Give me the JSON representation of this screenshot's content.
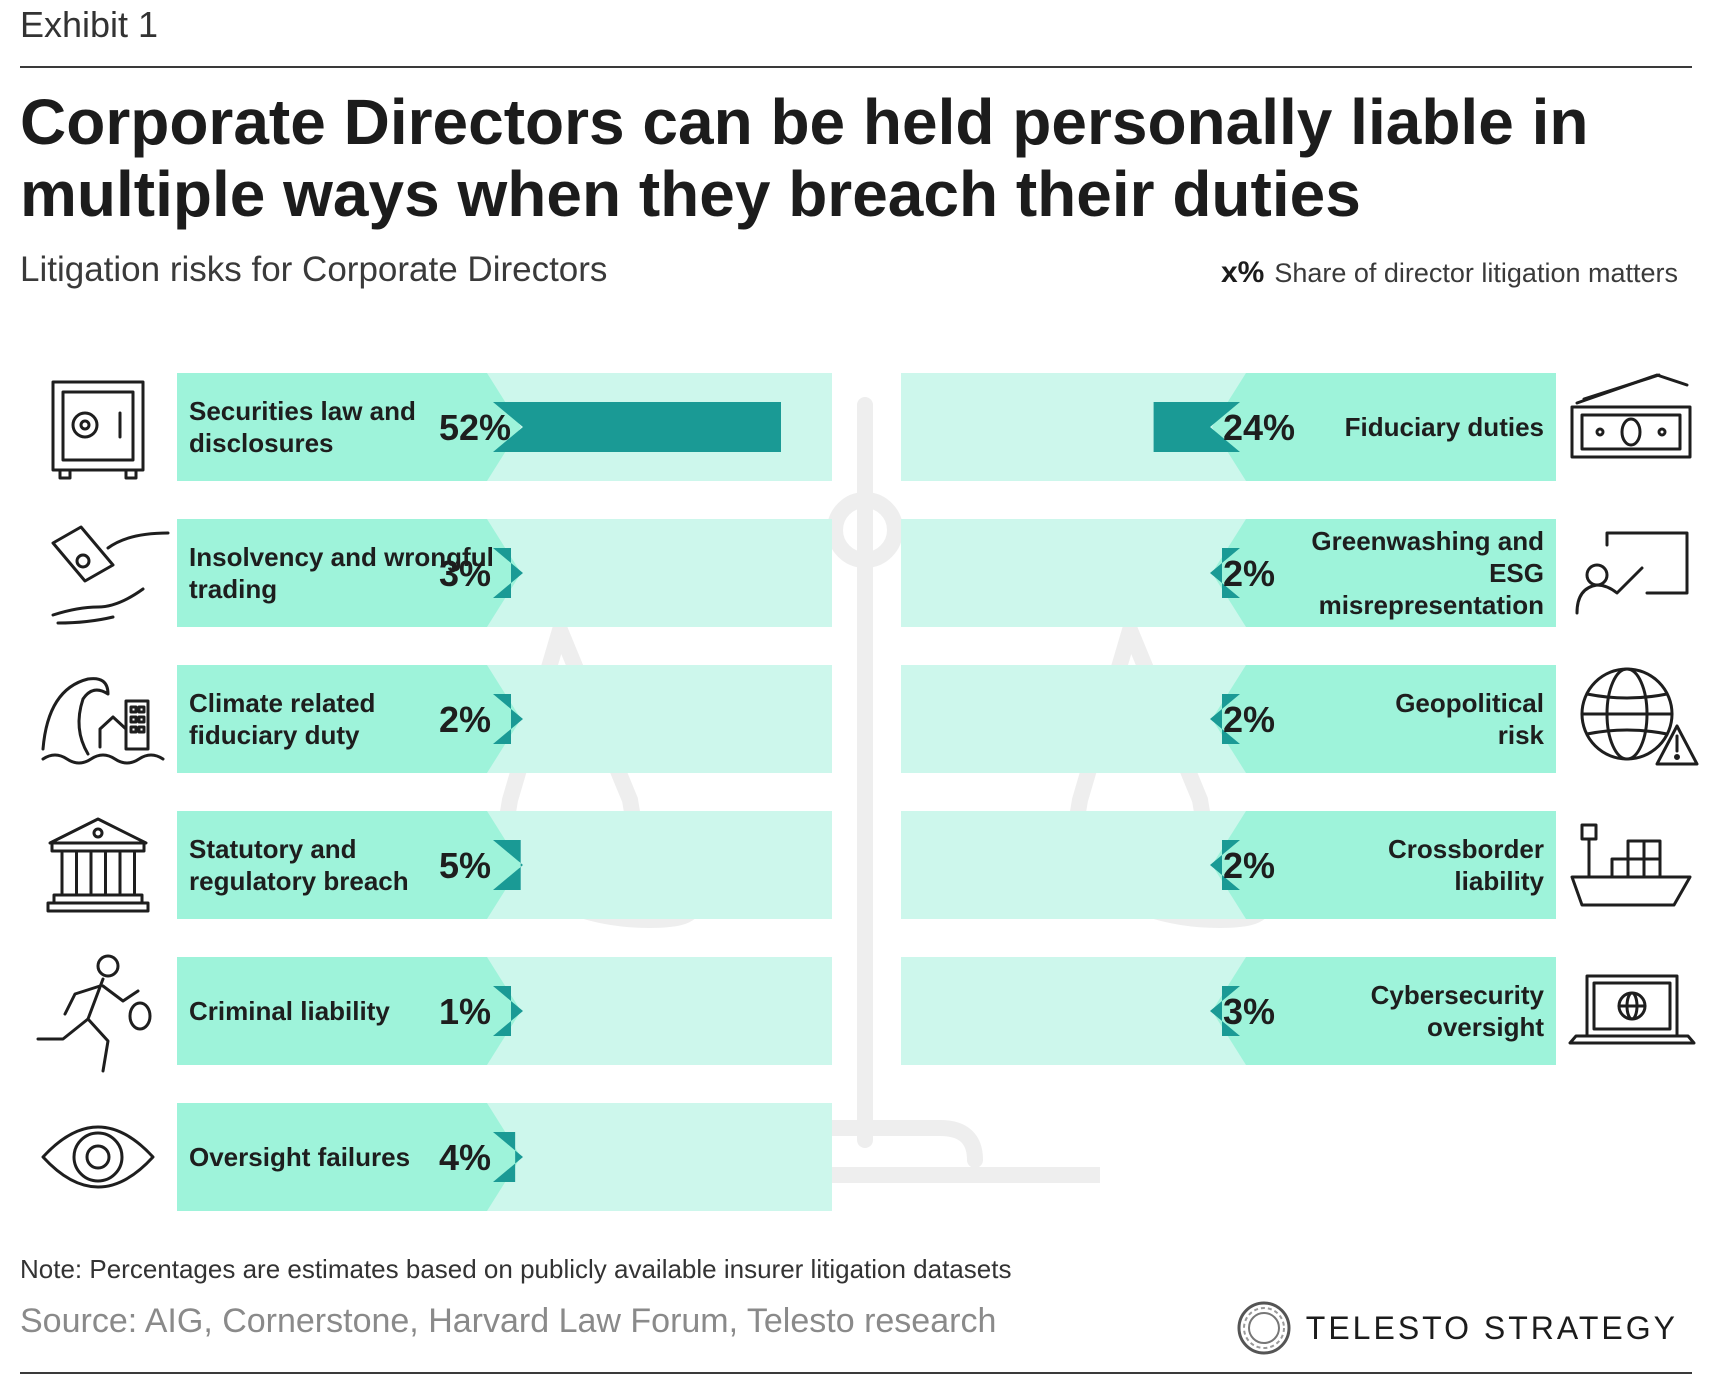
{
  "header": {
    "exhibit": "Exhibit 1",
    "title": "Corporate Directors can be held personally liable in multiple ways when they breach their duties",
    "subtitle": "Litigation risks for Corporate Directors"
  },
  "legend": {
    "symbol": "x%",
    "text": "Share of director litigation matters"
  },
  "footer": {
    "note": "Note: Percentages are estimates based on publicly available insurer litigation datasets",
    "source": "Source: AIG, Cornerstone, Harvard Law Forum, Telesto research",
    "brand": "TELESTO STRATEGY"
  },
  "colors": {
    "bar": "#1a9a95",
    "panel_light": "#cdf7ec",
    "panel_dark": "#9ef3da",
    "scale": "#eeeeee"
  },
  "chart_data": {
    "type": "bar",
    "unit": "%",
    "x_range": [
      0,
      52
    ],
    "left": [
      {
        "category": "Securities law and disclosures",
        "value": 52,
        "label": "52%",
        "icon": "safe-icon"
      },
      {
        "category": "Insolvency and wrongful trading",
        "value": 3,
        "label": "3%",
        "icon": "money-hands-icon"
      },
      {
        "category": "Climate related fiduciary duty",
        "value": 2,
        "label": "2%",
        "icon": "wave-flood-icon"
      },
      {
        "category": "Statutory and regulatory breach",
        "value": 5,
        "label": "5%",
        "icon": "government-building-icon"
      },
      {
        "category": "Criminal liability",
        "value": 1,
        "label": "1%",
        "icon": "running-thief-icon"
      },
      {
        "category": "Oversight failures",
        "value": 4,
        "label": "4%",
        "icon": "eye-icon"
      }
    ],
    "right": [
      {
        "category": "Fiduciary duties",
        "value": 24,
        "label": "24%",
        "icon": "cash-icon"
      },
      {
        "category": "Greenwashing and ESG misrepresentation",
        "value": 2,
        "label": "2%",
        "icon": "presentation-icon"
      },
      {
        "category": "Geopolitical risk",
        "value": 2,
        "label": "2%",
        "icon": "globe-warning-icon"
      },
      {
        "category": "Crossborder liability",
        "value": 2,
        "label": "2%",
        "icon": "cargo-ship-icon"
      },
      {
        "category": "Cybersecurity oversight",
        "value": 3,
        "label": "3%",
        "icon": "laptop-globe-icon"
      }
    ]
  }
}
